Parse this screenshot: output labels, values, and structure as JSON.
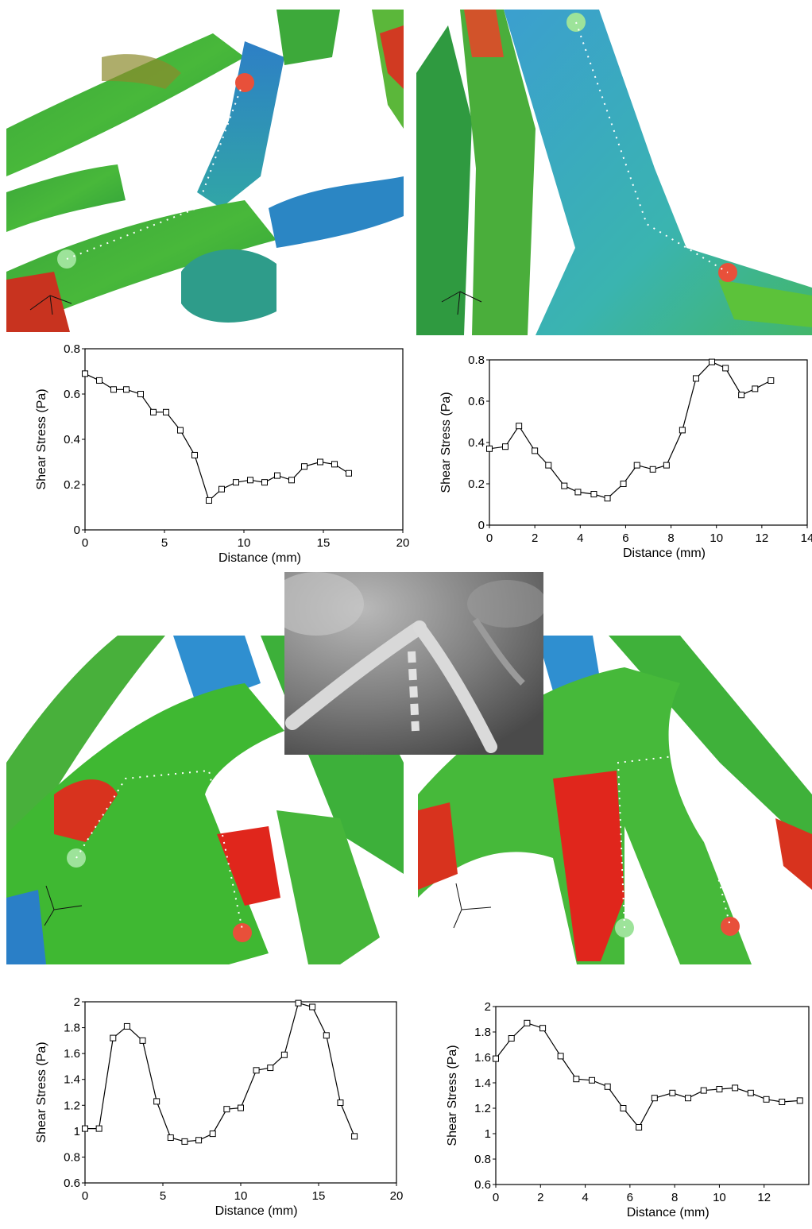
{
  "chart_data": [
    {
      "type": "line",
      "xlabel": "Distance (mm)",
      "ylabel": "Shear Stress (Pa)",
      "xlim": [
        0,
        20
      ],
      "ylim": [
        0,
        0.8
      ],
      "xticks": [
        0,
        5,
        10,
        15,
        20
      ],
      "yticks": [
        0,
        0.2,
        0.4,
        0.6,
        0.8
      ],
      "ytick_labels": [
        "0",
        "0.2",
        "0.4",
        "0.6",
        "0.8"
      ],
      "series": [
        {
          "x": [
            0,
            0.9,
            1.8,
            2.6,
            3.5,
            4.3,
            5.1,
            6.0,
            6.9,
            7.8,
            8.6,
            9.5,
            10.4,
            11.3,
            12.1,
            13.0,
            13.8,
            14.8,
            15.7,
            16.6
          ],
          "y": [
            0.69,
            0.66,
            0.62,
            0.62,
            0.6,
            0.52,
            0.52,
            0.44,
            0.33,
            0.13,
            0.18,
            0.21,
            0.22,
            0.21,
            0.24,
            0.22,
            0.28,
            0.3,
            0.29,
            0.25
          ]
        }
      ]
    },
    {
      "type": "line",
      "xlabel": "Distance (mm)",
      "ylabel": "Shear Stress (Pa)",
      "xlim": [
        0,
        14
      ],
      "ylim": [
        0,
        0.8
      ],
      "xticks": [
        0,
        2,
        4,
        6,
        8,
        10,
        12,
        14
      ],
      "yticks": [
        0,
        0.2,
        0.4,
        0.6,
        0.8
      ],
      "ytick_labels": [
        "0",
        "0.2",
        "0.4",
        "0.6",
        "0.8"
      ],
      "series": [
        {
          "x": [
            0,
            0.7,
            1.3,
            2.0,
            2.6,
            3.3,
            3.9,
            4.6,
            5.2,
            5.9,
            6.5,
            7.2,
            7.8,
            8.5,
            9.1,
            9.8,
            10.4,
            11.1,
            11.7,
            12.4
          ],
          "y": [
            0.37,
            0.38,
            0.48,
            0.36,
            0.29,
            0.19,
            0.16,
            0.15,
            0.13,
            0.2,
            0.29,
            0.27,
            0.29,
            0.46,
            0.71,
            0.79,
            0.76,
            0.63,
            0.66,
            0.7
          ]
        }
      ]
    },
    {
      "type": "line",
      "xlabel": "Distance (mm)",
      "ylabel": "Shear Stress (Pa)",
      "xlim": [
        0,
        20
      ],
      "ylim": [
        0.6,
        2
      ],
      "xticks": [
        0,
        5,
        10,
        15,
        20
      ],
      "yticks": [
        0.6,
        0.8,
        1,
        1.2,
        1.4,
        1.6,
        1.8,
        2
      ],
      "ytick_labels": [
        "0.6",
        "0.8",
        "1",
        "1.2",
        "1.4",
        "1.6",
        "1.8",
        "2"
      ],
      "series": [
        {
          "x": [
            0,
            0.9,
            1.8,
            2.7,
            3.7,
            4.6,
            5.5,
            6.4,
            7.3,
            8.2,
            9.1,
            10.0,
            11.0,
            11.9,
            12.8,
            13.7,
            14.6,
            15.5,
            16.4,
            17.3
          ],
          "y": [
            1.02,
            1.02,
            1.72,
            1.81,
            1.7,
            1.23,
            0.95,
            0.92,
            0.93,
            0.98,
            1.17,
            1.18,
            1.47,
            1.49,
            1.59,
            1.99,
            1.96,
            1.74,
            1.22,
            0.96
          ]
        }
      ]
    },
    {
      "type": "line",
      "xlabel": "Distance (mm)",
      "ylabel": "Shear Stress (Pa)",
      "xlim": [
        0,
        14
      ],
      "ylim": [
        0.6,
        2
      ],
      "xticks": [
        0,
        2,
        4,
        6,
        8,
        10,
        12
      ],
      "yticks": [
        0.6,
        0.8,
        1,
        1.2,
        1.4,
        1.6,
        1.8,
        2
      ],
      "ytick_labels": [
        "0.6",
        "0.8",
        "1",
        "1.2",
        "1.4",
        "1.6",
        "1.8",
        "2"
      ],
      "series": [
        {
          "x": [
            0,
            0.7,
            1.4,
            2.1,
            2.9,
            3.6,
            4.3,
            5.0,
            5.7,
            6.4,
            7.1,
            7.9,
            8.6,
            9.3,
            10.0,
            10.7,
            11.4,
            12.1,
            12.8,
            13.6
          ],
          "y": [
            1.59,
            1.75,
            1.87,
            1.83,
            1.61,
            1.43,
            1.42,
            1.37,
            1.2,
            1.05,
            1.28,
            1.32,
            1.28,
            1.34,
            1.35,
            1.36,
            1.32,
            1.27,
            1.25,
            1.26
          ]
        }
      ]
    }
  ],
  "colors": {
    "line": "#000000",
    "vessel_high": "#e0261c",
    "vessel_mid": "#3fb832",
    "vessel_low": "#2f8fd0",
    "marker_green": "#9de39a",
    "marker_red": "#e8503a"
  }
}
